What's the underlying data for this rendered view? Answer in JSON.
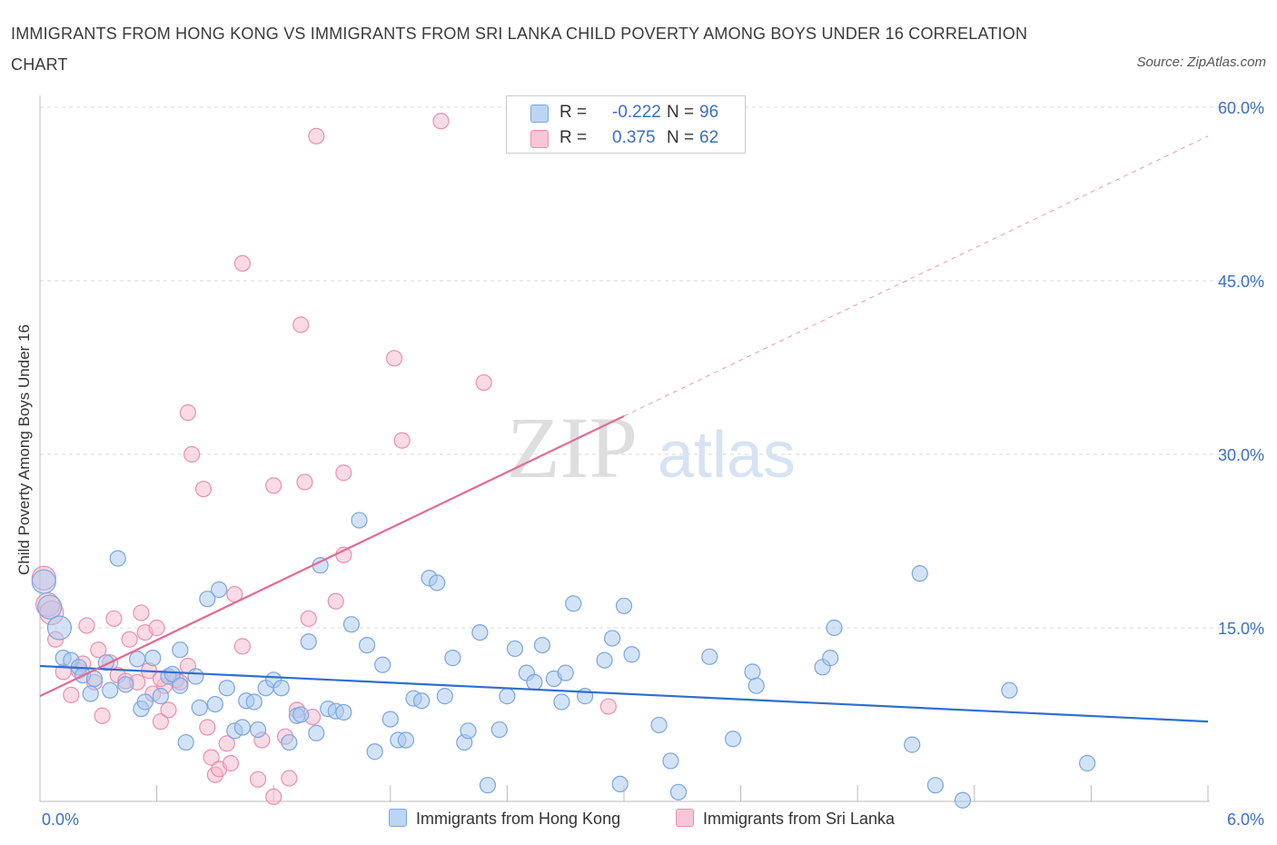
{
  "title": "IMMIGRANTS FROM HONG KONG VS IMMIGRANTS FROM SRI LANKA CHILD POVERTY AMONG BOYS UNDER 16 CORRELATION CHART",
  "source": "Source: ZipAtlas.com",
  "watermark": {
    "zip": "ZIP",
    "atlas": "atlas"
  },
  "legend": {
    "rows": [
      {
        "r_label": "R =",
        "r_value": "-0.222",
        "n_label": "N =",
        "n_value": "96"
      },
      {
        "r_label": "R =",
        "r_value": "0.375",
        "n_label": "N =",
        "n_value": "62"
      }
    ]
  },
  "colors": {
    "blue_fill": "#a8c8f0",
    "blue_stroke": "#7aa6e0",
    "blue_line": "#2f6fcf",
    "pink_fill": "#f5b8cb",
    "pink_stroke": "#ec8fae",
    "pink_line": "#e46a95",
    "tick_label": "#3b6fc7",
    "grid": "#d8d8d8"
  },
  "chart_data": {
    "type": "scatter",
    "title": "IMMIGRANTS FROM HONG KONG VS IMMIGRANTS FROM SRI LANKA CHILD POVERTY AMONG BOYS UNDER 16 CORRELATION CHART",
    "xlabel": "",
    "ylabel": "Child Poverty Among Boys Under 16",
    "xlim": [
      0,
      6
    ],
    "ylim": [
      0,
      60
    ],
    "x_tick_labels": [
      "0.0%",
      "6.0%"
    ],
    "y_ticks": [
      15,
      30,
      45,
      60
    ],
    "y_tick_labels": [
      "15.0%",
      "30.0%",
      "45.0%",
      "60.0%"
    ],
    "grid": true,
    "legend_position": "top-center",
    "series": [
      {
        "name": "Immigrants from Hong Kong",
        "color": "blue",
        "points": [
          [
            0.02,
            19.0
          ],
          [
            0.05,
            16.8
          ],
          [
            0.1,
            15.0
          ],
          [
            0.12,
            12.4
          ],
          [
            0.16,
            12.2
          ],
          [
            0.2,
            11.6
          ],
          [
            0.22,
            10.9
          ],
          [
            0.26,
            9.3
          ],
          [
            0.34,
            12.0
          ],
          [
            0.36,
            9.6
          ],
          [
            0.4,
            21.0
          ],
          [
            0.44,
            10.1
          ],
          [
            0.5,
            12.3
          ],
          [
            0.52,
            8.0
          ],
          [
            0.54,
            8.6
          ],
          [
            0.58,
            12.4
          ],
          [
            0.62,
            9.1
          ],
          [
            0.66,
            10.8
          ],
          [
            0.68,
            11.0
          ],
          [
            0.72,
            13.1
          ],
          [
            0.75,
            5.1
          ],
          [
            0.8,
            10.8
          ],
          [
            0.82,
            8.1
          ],
          [
            0.86,
            17.5
          ],
          [
            0.9,
            8.4
          ],
          [
            0.92,
            18.3
          ],
          [
            0.96,
            9.8
          ],
          [
            1.0,
            6.1
          ],
          [
            1.04,
            6.4
          ],
          [
            1.06,
            8.7
          ],
          [
            1.1,
            8.6
          ],
          [
            1.12,
            6.2
          ],
          [
            1.16,
            9.8
          ],
          [
            1.2,
            10.5
          ],
          [
            1.24,
            9.8
          ],
          [
            1.28,
            5.1
          ],
          [
            1.32,
            7.4
          ],
          [
            1.34,
            7.5
          ],
          [
            1.38,
            13.8
          ],
          [
            1.42,
            5.9
          ],
          [
            1.44,
            20.4
          ],
          [
            1.48,
            8.0
          ],
          [
            1.52,
            7.8
          ],
          [
            1.56,
            7.7
          ],
          [
            1.6,
            15.3
          ],
          [
            1.64,
            24.3
          ],
          [
            1.68,
            13.5
          ],
          [
            1.72,
            4.3
          ],
          [
            1.76,
            11.8
          ],
          [
            1.8,
            7.1
          ],
          [
            1.84,
            5.3
          ],
          [
            1.88,
            5.3
          ],
          [
            1.92,
            8.9
          ],
          [
            1.96,
            8.7
          ],
          [
            2.0,
            19.3
          ],
          [
            2.04,
            18.9
          ],
          [
            2.08,
            9.1
          ],
          [
            2.12,
            12.4
          ],
          [
            2.18,
            5.1
          ],
          [
            2.2,
            6.1
          ],
          [
            2.26,
            14.6
          ],
          [
            2.3,
            1.4
          ],
          [
            2.36,
            6.2
          ],
          [
            2.4,
            9.1
          ],
          [
            2.44,
            13.2
          ],
          [
            2.5,
            11.1
          ],
          [
            2.54,
            10.3
          ],
          [
            2.58,
            13.5
          ],
          [
            2.64,
            10.6
          ],
          [
            2.68,
            8.6
          ],
          [
            2.7,
            11.1
          ],
          [
            2.74,
            17.1
          ],
          [
            2.8,
            9.1
          ],
          [
            2.9,
            12.2
          ],
          [
            2.94,
            14.1
          ],
          [
            2.98,
            1.5
          ],
          [
            3.0,
            16.9
          ],
          [
            3.04,
            12.7
          ],
          [
            3.18,
            6.6
          ],
          [
            3.24,
            3.5
          ],
          [
            3.28,
            0.8
          ],
          [
            3.44,
            12.5
          ],
          [
            3.56,
            5.4
          ],
          [
            3.66,
            11.2
          ],
          [
            3.68,
            10.0
          ],
          [
            4.02,
            11.6
          ],
          [
            4.06,
            12.4
          ],
          [
            4.08,
            15.0
          ],
          [
            4.52,
            19.7
          ],
          [
            4.48,
            4.9
          ],
          [
            4.6,
            1.4
          ],
          [
            4.74,
            0.1
          ],
          [
            4.98,
            9.6
          ],
          [
            5.38,
            3.3
          ],
          [
            0.28,
            10.6
          ],
          [
            0.72,
            10.0
          ]
        ]
      },
      {
        "name": "Immigrants from Sri Lanka",
        "color": "pink",
        "points": [
          [
            0.02,
            19.3
          ],
          [
            0.04,
            17.0
          ],
          [
            0.06,
            16.3
          ],
          [
            0.08,
            14.0
          ],
          [
            0.12,
            11.2
          ],
          [
            0.16,
            9.2
          ],
          [
            0.2,
            11.3
          ],
          [
            0.24,
            15.2
          ],
          [
            0.28,
            10.3
          ],
          [
            0.3,
            13.1
          ],
          [
            0.32,
            7.4
          ],
          [
            0.36,
            12.0
          ],
          [
            0.38,
            15.8
          ],
          [
            0.4,
            10.9
          ],
          [
            0.44,
            10.4
          ],
          [
            0.46,
            14.0
          ],
          [
            0.5,
            10.3
          ],
          [
            0.52,
            16.3
          ],
          [
            0.54,
            14.6
          ],
          [
            0.56,
            11.3
          ],
          [
            0.58,
            9.3
          ],
          [
            0.6,
            15.0
          ],
          [
            0.62,
            6.9
          ],
          [
            0.64,
            10.0
          ],
          [
            0.66,
            7.9
          ],
          [
            0.7,
            10.5
          ],
          [
            0.72,
            10.3
          ],
          [
            0.76,
            11.7
          ],
          [
            0.76,
            33.6
          ],
          [
            0.78,
            30.0
          ],
          [
            0.84,
            27.0
          ],
          [
            0.86,
            6.4
          ],
          [
            0.88,
            3.8
          ],
          [
            0.9,
            2.3
          ],
          [
            0.92,
            2.8
          ],
          [
            0.96,
            5.0
          ],
          [
            0.98,
            3.3
          ],
          [
            1.0,
            17.9
          ],
          [
            1.04,
            13.4
          ],
          [
            1.04,
            46.5
          ],
          [
            1.12,
            1.9
          ],
          [
            1.14,
            5.3
          ],
          [
            1.2,
            27.3
          ],
          [
            1.2,
            0.4
          ],
          [
            1.26,
            5.6
          ],
          [
            1.28,
            2.0
          ],
          [
            1.32,
            7.9
          ],
          [
            1.34,
            41.2
          ],
          [
            1.36,
            27.6
          ],
          [
            1.38,
            15.8
          ],
          [
            1.4,
            7.3
          ],
          [
            1.42,
            57.5
          ],
          [
            1.52,
            17.3
          ],
          [
            1.56,
            28.4
          ],
          [
            1.56,
            21.3
          ],
          [
            1.82,
            38.3
          ],
          [
            1.86,
            31.2
          ],
          [
            2.06,
            58.8
          ],
          [
            2.28,
            36.2
          ],
          [
            2.92,
            8.2
          ],
          [
            0.22,
            11.9
          ],
          [
            0.62,
            10.6
          ]
        ]
      }
    ],
    "trend_lines": [
      {
        "series": "Immigrants from Hong Kong",
        "x": [
          0.0,
          6.0
        ],
        "y": [
          11.7,
          6.9
        ],
        "style": "solid"
      },
      {
        "series": "Immigrants from Sri Lanka",
        "x": [
          0.0,
          3.0
        ],
        "y": [
          9.1,
          33.3
        ],
        "style": "solid"
      },
      {
        "series": "Immigrants from Sri Lanka",
        "x": [
          3.0,
          6.0
        ],
        "y": [
          33.3,
          57.5
        ],
        "style": "dashed"
      }
    ]
  }
}
